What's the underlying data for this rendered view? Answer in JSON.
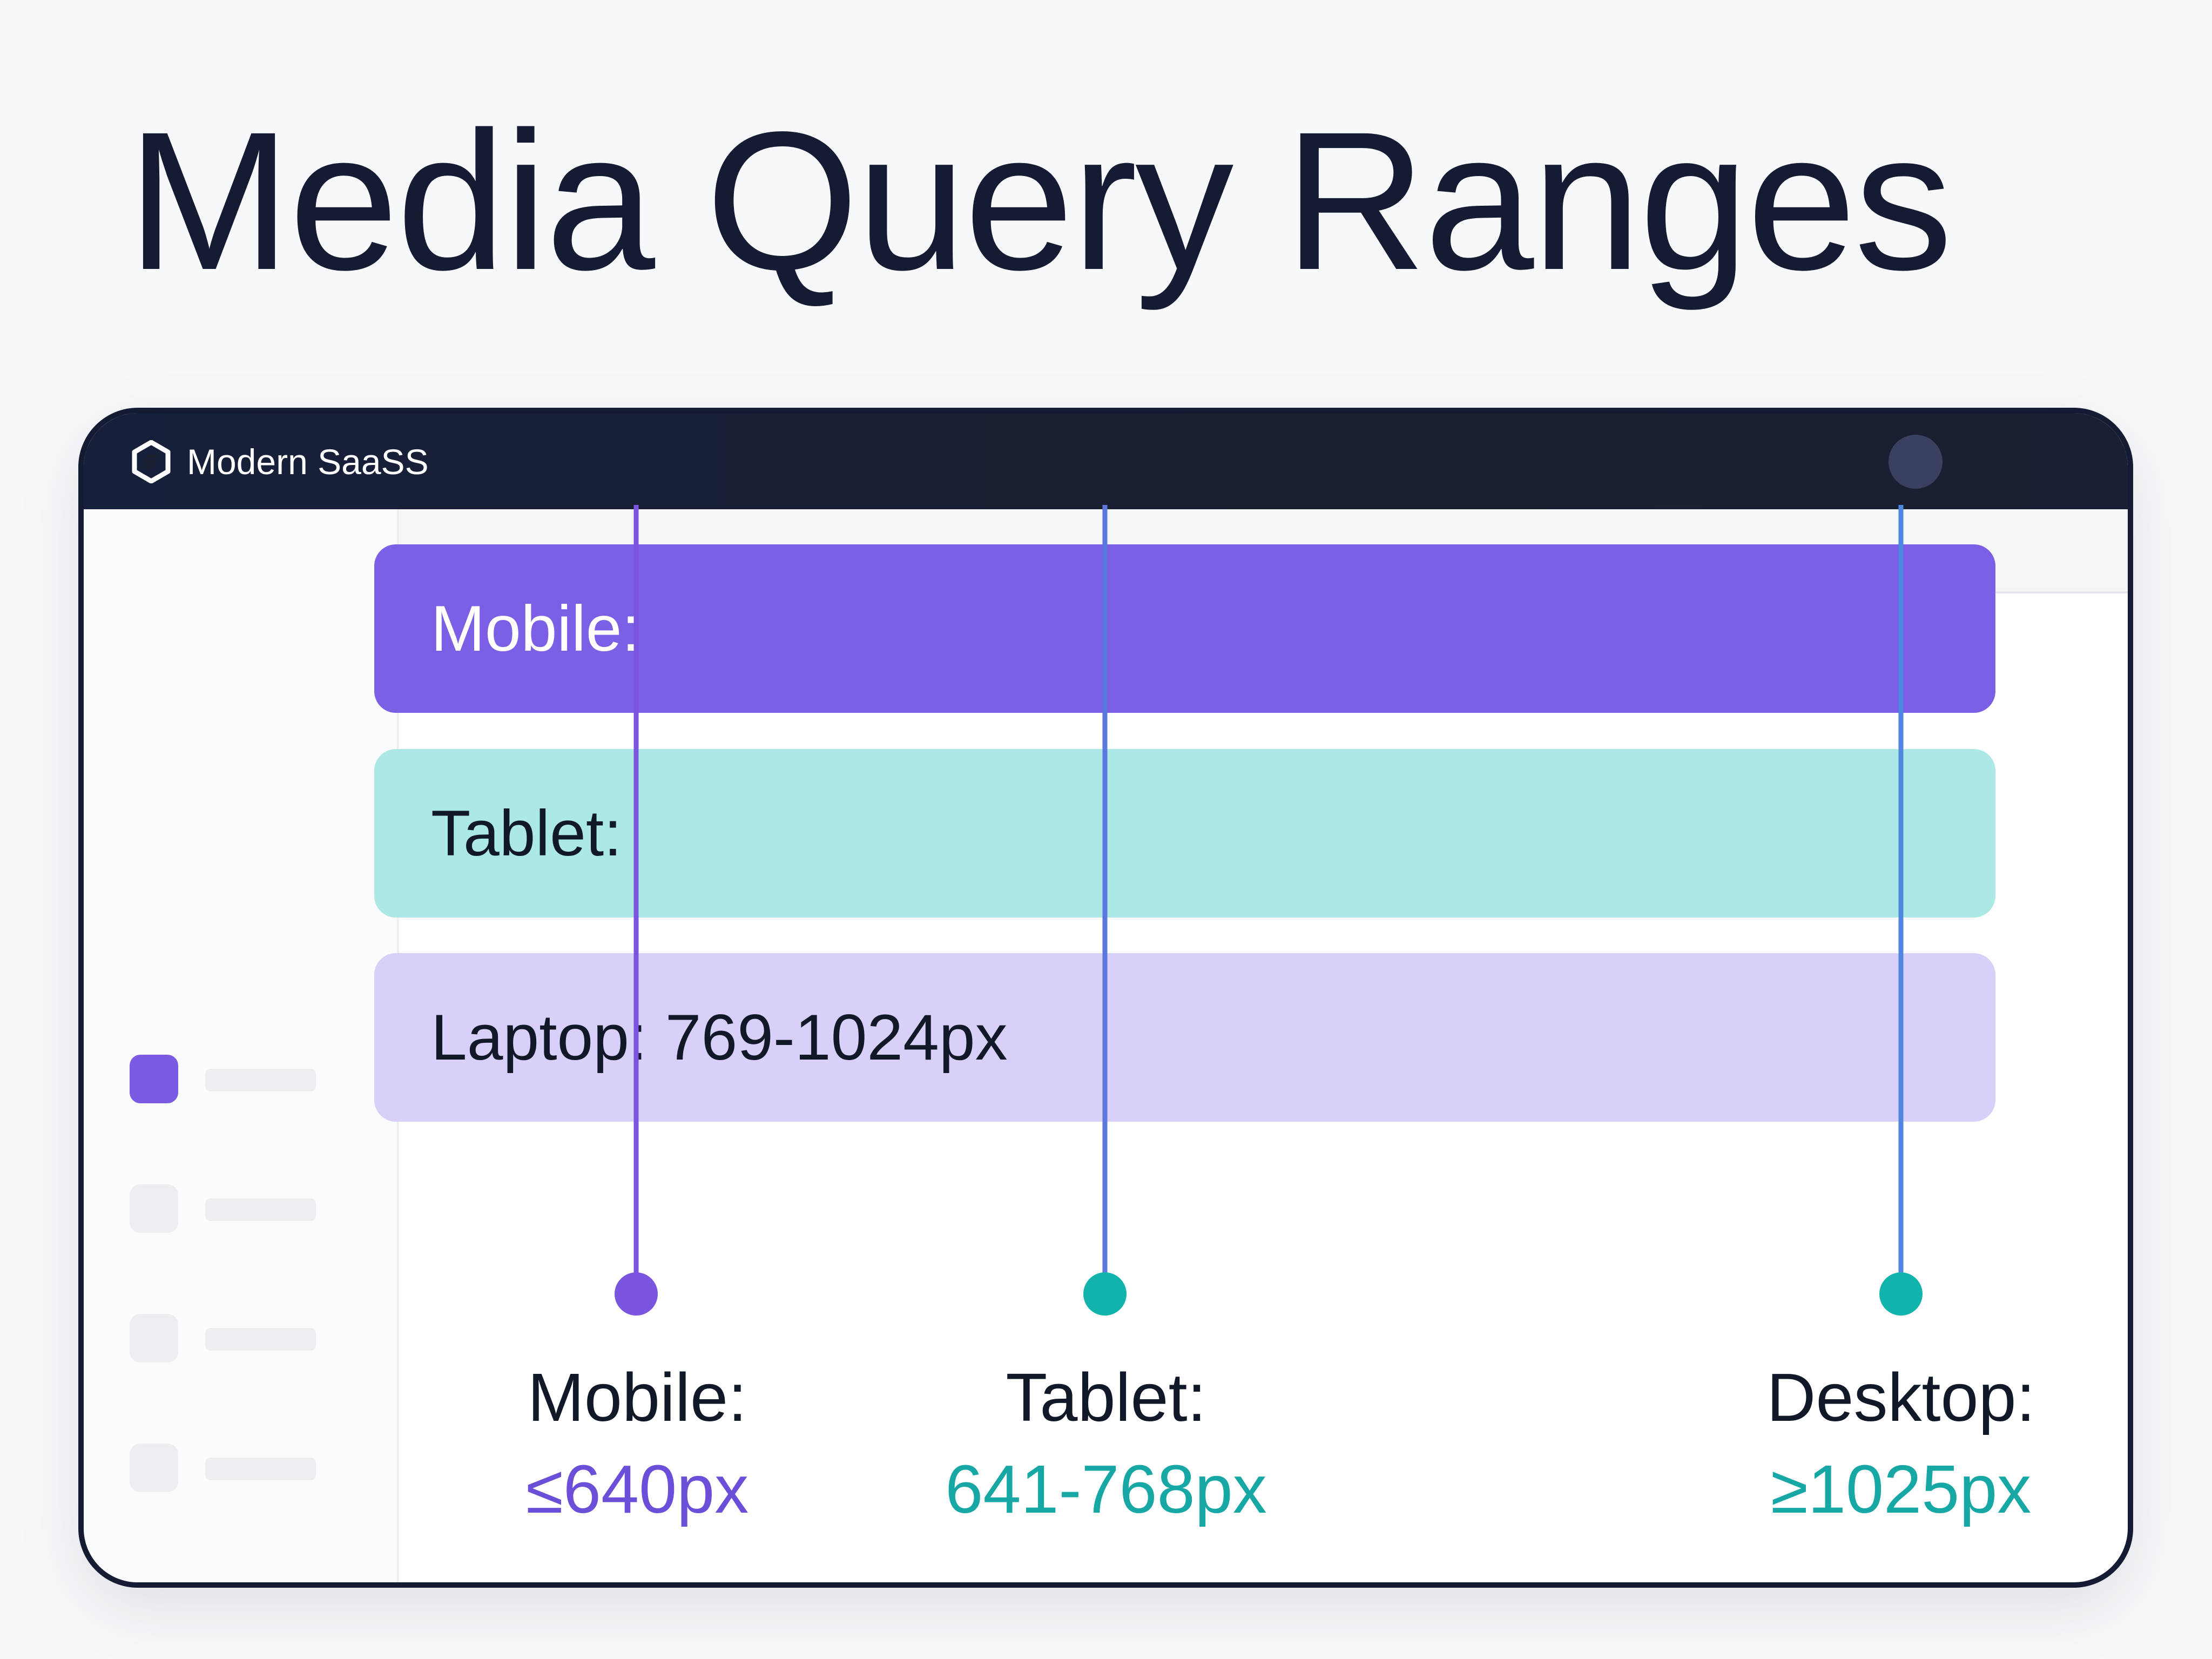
{
  "title": "Media Query Ranges",
  "app": {
    "brand_name": "Modern SaaSS",
    "brand_icon": "hexagon-logo-icon",
    "avatar_icon": "avatar-circle"
  },
  "sidebar": {
    "items": [
      {
        "icon": "nav-square-icon",
        "active": true
      },
      {
        "icon": "nav-square-icon",
        "active": false
      },
      {
        "icon": "nav-square-icon",
        "active": false
      },
      {
        "icon": "nav-square-icon",
        "active": false
      }
    ]
  },
  "bands": [
    {
      "label": "Mobile:",
      "color": "#7b5fe4"
    },
    {
      "label": "Tablet:",
      "color": "#ace9e6"
    },
    {
      "label": "Laptop: 769-1024px",
      "color": "#d8d0f8"
    }
  ],
  "breakpoints": [
    {
      "label": "Mobile:",
      "value": "≤640px",
      "color": "#6b4fd8",
      "line_color": "#7b55e0",
      "dot_color": "#7b55e0"
    },
    {
      "label": "Tablet:",
      "value": "641-768px",
      "color": "#17a8a6",
      "line_color": "#5a78e0",
      "dot_color": "#13b3ad"
    },
    {
      "label": "Desktop:",
      "value": "≥1025px",
      "color": "#17a8a6",
      "line_color": "#4f86e0",
      "dot_color": "#13b3ad"
    }
  ],
  "colors": {
    "title": "#141b33",
    "titlebar": "#1b2030",
    "accent_purple": "#7b5fe4",
    "accent_teal": "#13b3ad"
  }
}
